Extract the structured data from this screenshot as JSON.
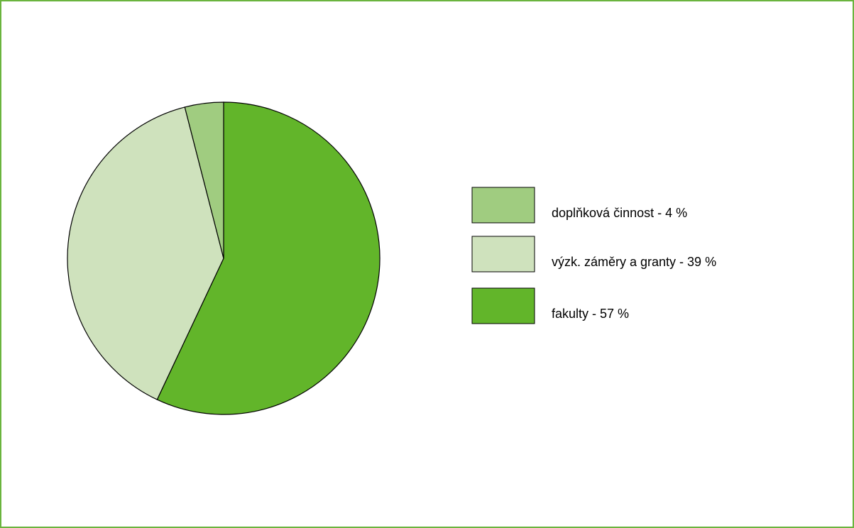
{
  "chart_data": {
    "type": "pie",
    "categories": [
      "doplňková činnost - 4 %",
      "výzk. záměry a granty - 39 %",
      "fakulty - 57 %"
    ],
    "values": [
      4,
      39,
      57
    ],
    "colors": [
      "#a0cc80",
      "#cfe2bd",
      "#62b52a"
    ]
  }
}
